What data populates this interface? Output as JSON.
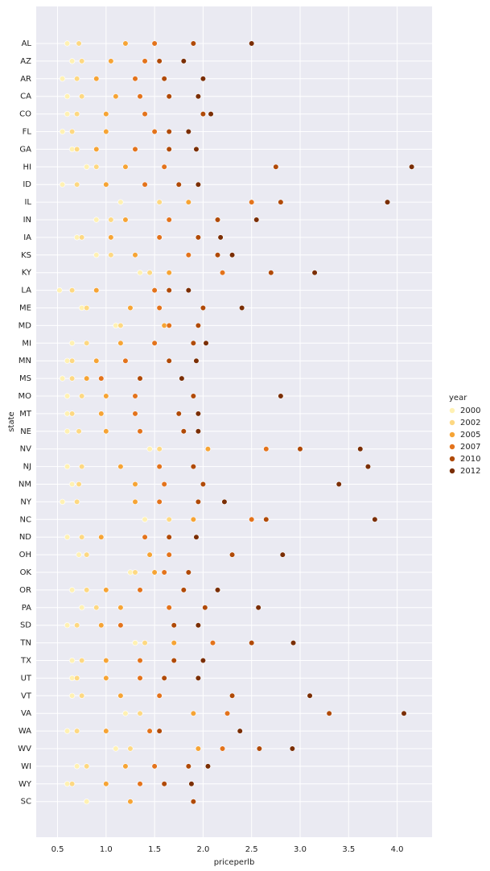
{
  "chart_data": {
    "type": "scatter",
    "x_label": "priceperlb",
    "y_label": "state",
    "legend_title": "year",
    "categories": [
      "AL",
      "AZ",
      "AR",
      "CA",
      "CO",
      "FL",
      "GA",
      "HI",
      "ID",
      "IL",
      "IN",
      "IA",
      "KS",
      "KY",
      "LA",
      "ME",
      "MD",
      "MI",
      "MN",
      "MS",
      "MO",
      "MT",
      "NE",
      "NV",
      "NJ",
      "NM",
      "NY",
      "NC",
      "ND",
      "OH",
      "OK",
      "OR",
      "PA",
      "SD",
      "TN",
      "TX",
      "UT",
      "VT",
      "VA",
      "WA",
      "WV",
      "WI",
      "WY",
      "SC"
    ],
    "xlim": [
      0.28,
      4.36
    ],
    "xticks": [
      0.5,
      {
        "value": 1,
        "label": "1.0"
      },
      1.5,
      {
        "value": 2,
        "label": "2.0"
      },
      2.5,
      {
        "value": 3,
        "label": "3.0"
      },
      3.5,
      {
        "value": 4,
        "label": "4.0"
      }
    ],
    "grid": true,
    "legend": "right",
    "series": [
      {
        "name": "2000",
        "color": "#fff1b3",
        "values": [
          0.6,
          0.65,
          0.55,
          0.6,
          0.6,
          0.55,
          0.65,
          0.8,
          0.55,
          1.15,
          0.9,
          0.7,
          0.9,
          1.35,
          0.52,
          0.75,
          1.1,
          0.65,
          0.6,
          0.55,
          0.6,
          0.6,
          0.6,
          1.45,
          0.6,
          0.65,
          0.55,
          1.4,
          0.6,
          0.72,
          1.25,
          0.65,
          0.75,
          0.6,
          1.3,
          0.65,
          0.65,
          0.65,
          1.2,
          0.6,
          1.1,
          0.7,
          0.6,
          0.8
        ]
      },
      {
        "name": "2002",
        "color": "#fdd882",
        "values": [
          0.72,
          0.75,
          0.7,
          0.75,
          0.7,
          0.65,
          0.7,
          0.9,
          0.7,
          1.55,
          1.05,
          0.75,
          1.05,
          1.45,
          0.65,
          0.8,
          1.15,
          0.8,
          0.65,
          0.65,
          0.75,
          0.65,
          0.72,
          1.55,
          0.75,
          0.72,
          0.7,
          1.65,
          0.75,
          0.8,
          1.3,
          0.8,
          0.9,
          0.7,
          1.4,
          0.75,
          0.7,
          0.75,
          1.35,
          0.7,
          1.25,
          0.8,
          0.65,
          null
        ]
      },
      {
        "name": "2005",
        "color": "#f6a435",
        "values": [
          1.2,
          1.05,
          0.9,
          1.1,
          1.0,
          1.0,
          0.9,
          1.2,
          1.0,
          1.85,
          1.2,
          1.05,
          1.3,
          1.65,
          0.9,
          1.25,
          1.6,
          1.15,
          0.9,
          0.8,
          1.0,
          0.95,
          1.0,
          2.05,
          1.15,
          1.3,
          1.3,
          1.9,
          0.95,
          1.45,
          1.5,
          1.0,
          1.15,
          0.95,
          1.7,
          1.0,
          1.0,
          1.15,
          1.9,
          1.0,
          1.95,
          1.2,
          1.0,
          1.25
        ]
      },
      {
        "name": "2007",
        "color": "#e3731c",
        "values": [
          1.5,
          1.4,
          1.3,
          1.35,
          1.4,
          1.5,
          1.3,
          1.6,
          1.4,
          2.5,
          1.65,
          1.55,
          1.85,
          2.2,
          1.5,
          1.55,
          1.65,
          1.5,
          1.2,
          0.95,
          1.3,
          1.3,
          1.35,
          2.65,
          1.55,
          1.6,
          1.55,
          2.5,
          1.4,
          1.65,
          1.6,
          1.35,
          1.65,
          1.15,
          2.1,
          1.35,
          1.35,
          1.55,
          2.25,
          1.45,
          2.2,
          1.5,
          1.35,
          null
        ]
      },
      {
        "name": "2010",
        "color": "#b04a08",
        "values": [
          1.9,
          1.55,
          1.6,
          1.65,
          2.0,
          1.65,
          1.65,
          2.75,
          1.75,
          2.8,
          2.15,
          1.95,
          2.15,
          2.7,
          1.65,
          2.0,
          1.95,
          1.9,
          1.65,
          1.35,
          1.9,
          1.75,
          1.8,
          3.0,
          1.9,
          2.0,
          1.95,
          2.65,
          1.65,
          2.3,
          1.85,
          1.8,
          2.02,
          1.7,
          2.5,
          1.7,
          1.6,
          2.3,
          3.3,
          1.55,
          2.58,
          1.85,
          1.6,
          1.9
        ]
      },
      {
        "name": "2012",
        "color": "#7a2e05",
        "values": [
          2.5,
          1.8,
          2.0,
          1.95,
          2.08,
          1.85,
          1.93,
          4.15,
          1.95,
          3.9,
          2.55,
          2.18,
          2.3,
          3.15,
          1.85,
          2.4,
          null,
          2.03,
          1.93,
          1.78,
          2.8,
          1.95,
          1.95,
          3.62,
          3.7,
          3.4,
          2.22,
          3.77,
          1.93,
          2.82,
          null,
          2.15,
          2.57,
          1.95,
          2.93,
          2.0,
          1.95,
          3.1,
          4.07,
          2.38,
          2.92,
          2.05,
          1.88,
          null
        ]
      }
    ]
  }
}
